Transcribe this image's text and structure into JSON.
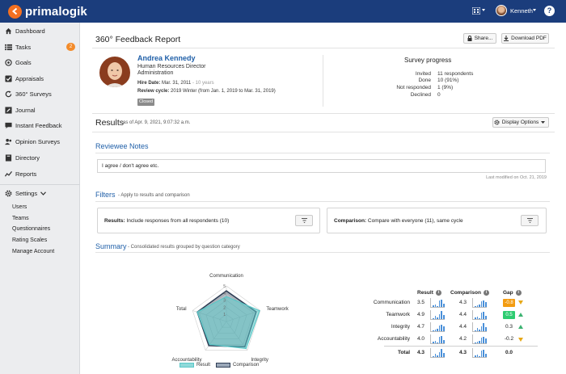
{
  "app": {
    "brand": "primalogik",
    "user_name": "Kenneth",
    "help": "?"
  },
  "sidebar": {
    "items": [
      {
        "label": "Dashboard",
        "icon": "home-icon"
      },
      {
        "label": "Tasks",
        "icon": "list-icon",
        "badge": "2"
      },
      {
        "label": "Goals",
        "icon": "target-icon"
      },
      {
        "label": "Appraisals",
        "icon": "checkbox-icon"
      },
      {
        "label": "360° Surveys",
        "icon": "cycle-icon"
      },
      {
        "label": "Journal",
        "icon": "pencil-icon"
      },
      {
        "label": "Instant Feedback",
        "icon": "chat-icon"
      },
      {
        "label": "Opinion Surveys",
        "icon": "people-icon"
      },
      {
        "label": "Directory",
        "icon": "book-icon"
      },
      {
        "label": "Reports",
        "icon": "chart-line-icon"
      }
    ],
    "settings_label": "Settings",
    "settings_sub": [
      "Users",
      "Teams",
      "Questionnaires",
      "Rating Scales",
      "Manage Account"
    ]
  },
  "report": {
    "title": "360° Feedback Report",
    "share_label": "Share...",
    "download_label": "Download PDF",
    "person": {
      "name": "Andrea Kennedy",
      "role": "Human Resources Director",
      "dept": "Administration",
      "hire_label": "Hire Date:",
      "hire_date": "Mar. 31, 2011",
      "hire_years": "- 10 years",
      "cycle_label": "Review cycle:",
      "cycle_value": "2019 Winter (from Jan. 1, 2019 to Mar. 31, 2019)",
      "status": "Closed"
    },
    "progress": {
      "title": "Survey progress",
      "rows": [
        {
          "label": "Invited",
          "value": "11 respondents"
        },
        {
          "label": "Done",
          "value": "10 (91%)"
        },
        {
          "label": "Not responded",
          "value": "1 (9%)"
        },
        {
          "label": "Declined",
          "value": "0"
        }
      ]
    }
  },
  "results": {
    "title": "Results",
    "as_of": "as of Apr. 9, 2021, 9:07:32 a.m.",
    "display_options": "Display Options"
  },
  "notes": {
    "title": "Reviewee Notes",
    "text": "I agree / don't agree etc.",
    "modified": "Last modified on Oct. 21, 2019"
  },
  "filters": {
    "title": "Filters",
    "subtitle": "- Apply to results and comparison",
    "results_label": "Results:",
    "results_value": "Include responses from all respondents (10)",
    "comparison_label": "Comparison:",
    "comparison_value": "Compare with everyone (11), same cycle"
  },
  "summary": {
    "title": "Summary",
    "subtitle": "- Consolidated results grouped by question category",
    "col_result": "Result",
    "col_comparison": "Comparison",
    "col_gap": "Gap",
    "rows": [
      {
        "label": "Communication",
        "result": "3.5",
        "comparison": "4.3",
        "gap": "-0.8",
        "dir": "down",
        "highlight": "#f39c12"
      },
      {
        "label": "Teamwork",
        "result": "4.9",
        "comparison": "4.4",
        "gap": "0.5",
        "dir": "up",
        "highlight": "#2ecc71"
      },
      {
        "label": "Integrity",
        "result": "4.7",
        "comparison": "4.4",
        "gap": "0.3",
        "dir": "up",
        "highlight": ""
      },
      {
        "label": "Accountability",
        "result": "4.0",
        "comparison": "4.2",
        "gap": "-0.2",
        "dir": "down",
        "highlight": ""
      }
    ],
    "total": {
      "label": "Total",
      "result": "4.3",
      "comparison": "4.3",
      "gap": "0.0"
    },
    "legend_result": "Result",
    "legend_comparison": "Comparison"
  },
  "chart_data": {
    "type": "radar",
    "axes": [
      "Communication",
      "Teamwork",
      "Integrity",
      "Accountability",
      "Total"
    ],
    "rmax": 5,
    "ticks": [
      "1",
      "2",
      "3",
      "4",
      "5"
    ],
    "series": [
      {
        "name": "Result",
        "values": [
          3.5,
          4.9,
          4.7,
          4.0,
          4.3
        ],
        "color": "#5bc8c8"
      },
      {
        "name": "Comparison",
        "values": [
          4.3,
          4.4,
          4.4,
          4.2,
          4.3
        ],
        "color": "#2f3e55"
      }
    ]
  }
}
